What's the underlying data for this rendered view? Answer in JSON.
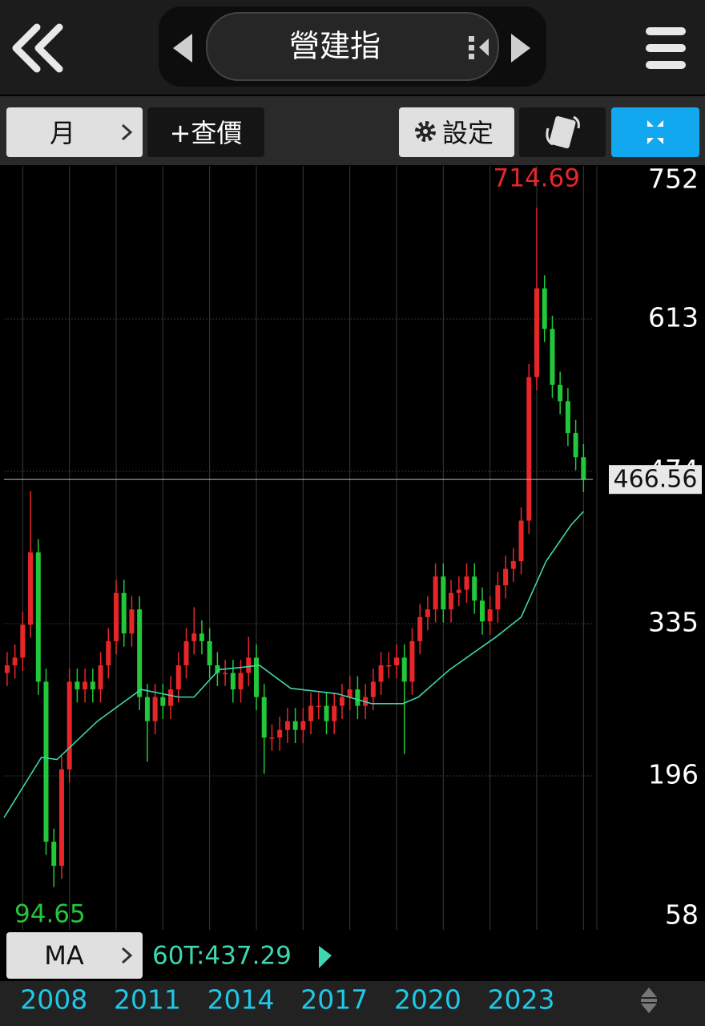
{
  "header": {
    "title": "營建指"
  },
  "toolbar": {
    "period": "月",
    "quote": "+查價",
    "settings": "設定"
  },
  "indicator": {
    "button": "MA",
    "ma_label": "60T:437.29"
  },
  "chart_data": {
    "type": "candlestick",
    "x": [
      2006.5,
      2006.75,
      2007,
      2007.25,
      2007.5,
      2007.75,
      2008,
      2008.25,
      2008.5,
      2008.75,
      2009,
      2009.25,
      2009.5,
      2009.75,
      2010,
      2010.25,
      2010.5,
      2010.75,
      2011,
      2011.25,
      2011.5,
      2011.75,
      2012,
      2012.25,
      2012.5,
      2012.75,
      2013,
      2013.25,
      2013.5,
      2013.75,
      2014,
      2014.25,
      2014.5,
      2014.75,
      2015,
      2015.25,
      2015.5,
      2015.75,
      2016,
      2016.25,
      2016.5,
      2016.75,
      2017,
      2017.25,
      2017.5,
      2017.75,
      2018,
      2018.25,
      2018.5,
      2018.75,
      2019,
      2019.25,
      2019.5,
      2019.75,
      2020,
      2020.25,
      2020.5,
      2020.75,
      2021,
      2021.25,
      2021.5,
      2021.75,
      2022,
      2022.25,
      2022.5,
      2022.75,
      2023,
      2023.25,
      2023.5,
      2023.75,
      2024,
      2024.25,
      2024.5,
      2024.75,
      2025
    ],
    "open": [
      290,
      297,
      304,
      334,
      400,
      282,
      136,
      114,
      202,
      282,
      275,
      282,
      275,
      297,
      319,
      363,
      326,
      348,
      268,
      246,
      268,
      260,
      275,
      297,
      319,
      326,
      319,
      297,
      290,
      290,
      275,
      290,
      304,
      268,
      231,
      231,
      238,
      246,
      238,
      246,
      260,
      260,
      246,
      260,
      268,
      275,
      260,
      268,
      282,
      297,
      297,
      304,
      282,
      319,
      341,
      348,
      378,
      348,
      363,
      366,
      378,
      356,
      337,
      348,
      370,
      385,
      392,
      429,
      560,
      641,
      604,
      553,
      538,
      509,
      487
    ],
    "high": [
      309,
      316,
      346,
      456,
      412,
      294,
      148,
      214,
      294,
      294,
      294,
      294,
      309,
      331,
      375,
      375,
      360,
      360,
      280,
      280,
      280,
      287,
      309,
      331,
      350,
      338,
      331,
      309,
      302,
      302,
      302,
      323,
      316,
      280,
      243,
      250,
      258,
      258,
      258,
      272,
      272,
      272,
      272,
      280,
      287,
      287,
      280,
      294,
      309,
      309,
      316,
      316,
      331,
      353,
      360,
      390,
      390,
      375,
      378,
      390,
      390,
      368,
      360,
      382,
      397,
      404,
      441,
      572,
      714.69,
      653,
      616,
      565,
      550,
      521,
      499
    ],
    "low": [
      278,
      285,
      292,
      322,
      270,
      124,
      94.65,
      102,
      190,
      263,
      263,
      263,
      263,
      285,
      307,
      314,
      314,
      256,
      209,
      234,
      248,
      248,
      263,
      285,
      307,
      307,
      285,
      278,
      278,
      263,
      263,
      278,
      256,
      198,
      219,
      219,
      226,
      226,
      226,
      234,
      248,
      234,
      234,
      248,
      256,
      248,
      248,
      256,
      270,
      285,
      285,
      216,
      270,
      307,
      329,
      336,
      336,
      336,
      351,
      354,
      344,
      325,
      325,
      336,
      358,
      373,
      380,
      417,
      548,
      592,
      541,
      526,
      497,
      475,
      455
    ],
    "close": [
      297,
      304,
      334,
      400,
      282,
      136,
      114,
      202,
      282,
      275,
      282,
      275,
      297,
      319,
      363,
      326,
      348,
      268,
      246,
      268,
      260,
      275,
      297,
      319,
      326,
      319,
      297,
      290,
      290,
      275,
      290,
      304,
      268,
      231,
      231,
      238,
      246,
      238,
      246,
      260,
      260,
      246,
      260,
      268,
      275,
      260,
      268,
      282,
      297,
      297,
      304,
      282,
      319,
      341,
      348,
      378,
      348,
      363,
      366,
      378,
      356,
      337,
      348,
      370,
      385,
      392,
      429,
      560,
      641,
      604,
      553,
      538,
      509,
      487,
      466.56
    ],
    "up_color": "#e8262a",
    "down_color": "#22c83a",
    "ma": {
      "color": "#3fd6b0",
      "x": [
        2006.4,
        2007.6,
        2008.1,
        2009.4,
        2010.8,
        2012,
        2012.5,
        2013.3,
        2014,
        2014.6,
        2015.6,
        2017.1,
        2018.2,
        2019.2,
        2019.7,
        2020.7,
        2022.2,
        2023,
        2023.8,
        2024.6,
        2025
      ],
      "values": [
        158,
        213,
        211,
        246,
        275,
        268,
        268,
        293,
        295,
        297,
        276,
        271,
        262,
        262,
        268,
        293,
        323,
        341,
        392,
        425,
        437.29
      ]
    },
    "xlim": [
      2006.4,
      2025.3
    ],
    "ylim": [
      55.6,
      752.7
    ],
    "xticks": [
      2008,
      2011,
      2014,
      2017,
      2020,
      2023
    ],
    "yticks": [
      58,
      196,
      335,
      474,
      613,
      752
    ],
    "grid": true
  }
}
